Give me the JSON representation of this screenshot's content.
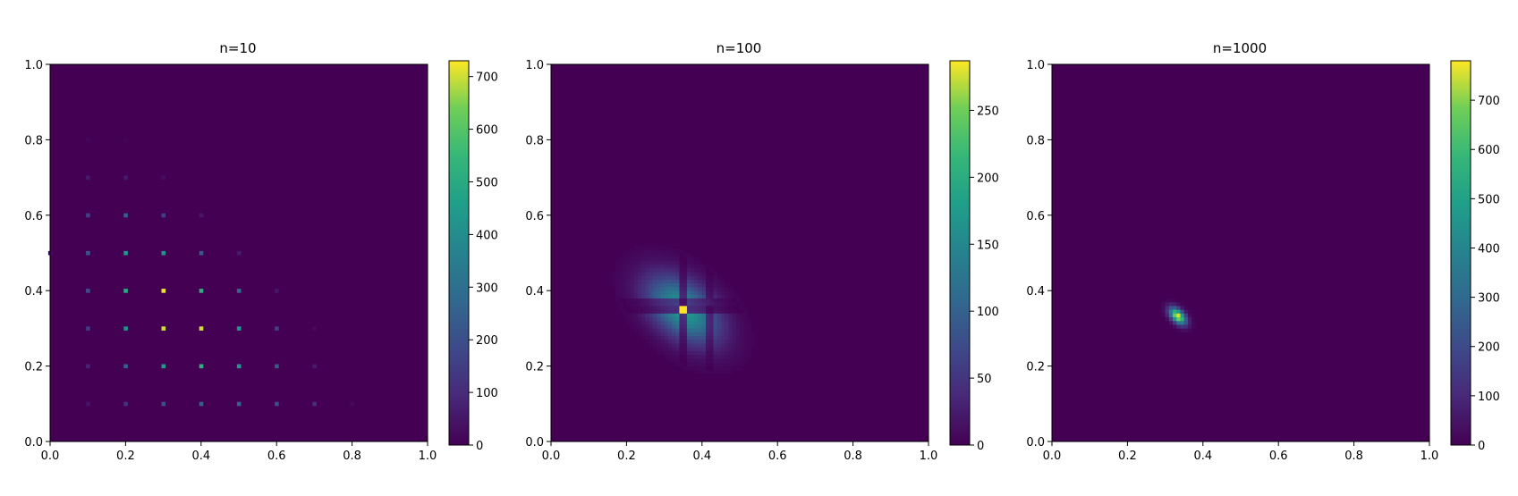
{
  "chart_data": [
    {
      "type": "heatmap",
      "title": "n=10",
      "xlabel": "",
      "ylabel": "",
      "xlim": [
        0,
        1
      ],
      "ylim": [
        0,
        1
      ],
      "xticks": [
        "0.0",
        "0.2",
        "0.4",
        "0.6",
        "0.8",
        "1.0"
      ],
      "yticks": [
        "0.0",
        "0.2",
        "0.4",
        "0.6",
        "0.8",
        "1.0"
      ],
      "colormap": "viridis",
      "colorbar": {
        "min": 0,
        "max": 730,
        "ticks": [
          0,
          100,
          200,
          300,
          400,
          500,
          600,
          700
        ]
      },
      "grid": false,
      "points": [
        {
          "x": 0.1,
          "y": 0.8,
          "v": 15
        },
        {
          "x": 0.2,
          "y": 0.8,
          "v": 10
        },
        {
          "x": 0.1,
          "y": 0.7,
          "v": 60
        },
        {
          "x": 0.2,
          "y": 0.7,
          "v": 60
        },
        {
          "x": 0.3,
          "y": 0.7,
          "v": 30
        },
        {
          "x": 0.1,
          "y": 0.6,
          "v": 160
        },
        {
          "x": 0.2,
          "y": 0.6,
          "v": 250
        },
        {
          "x": 0.3,
          "y": 0.6,
          "v": 160
        },
        {
          "x": 0.4,
          "y": 0.6,
          "v": 50
        },
        {
          "x": 0.0,
          "y": 0.5,
          "v": 30
        },
        {
          "x": 0.1,
          "y": 0.5,
          "v": 220
        },
        {
          "x": 0.2,
          "y": 0.5,
          "v": 430
        },
        {
          "x": 0.3,
          "y": 0.5,
          "v": 420
        },
        {
          "x": 0.4,
          "y": 0.5,
          "v": 230
        },
        {
          "x": 0.5,
          "y": 0.5,
          "v": 60
        },
        {
          "x": 0.1,
          "y": 0.4,
          "v": 200
        },
        {
          "x": 0.2,
          "y": 0.4,
          "v": 500
        },
        {
          "x": 0.3,
          "y": 0.4,
          "v": 720
        },
        {
          "x": 0.4,
          "y": 0.4,
          "v": 520
        },
        {
          "x": 0.5,
          "y": 0.4,
          "v": 280
        },
        {
          "x": 0.6,
          "y": 0.4,
          "v": 50
        },
        {
          "x": 0.1,
          "y": 0.3,
          "v": 140
        },
        {
          "x": 0.2,
          "y": 0.3,
          "v": 420
        },
        {
          "x": 0.3,
          "y": 0.3,
          "v": 700
        },
        {
          "x": 0.4,
          "y": 0.3,
          "v": 700
        },
        {
          "x": 0.5,
          "y": 0.3,
          "v": 440
        },
        {
          "x": 0.6,
          "y": 0.3,
          "v": 160
        },
        {
          "x": 0.7,
          "y": 0.3,
          "v": 20
        },
        {
          "x": 0.1,
          "y": 0.2,
          "v": 80
        },
        {
          "x": 0.2,
          "y": 0.2,
          "v": 260
        },
        {
          "x": 0.3,
          "y": 0.2,
          "v": 440
        },
        {
          "x": 0.4,
          "y": 0.2,
          "v": 520
        },
        {
          "x": 0.5,
          "y": 0.2,
          "v": 440
        },
        {
          "x": 0.6,
          "y": 0.2,
          "v": 230
        },
        {
          "x": 0.7,
          "y": 0.2,
          "v": 60
        },
        {
          "x": 0.1,
          "y": 0.1,
          "v": 40
        },
        {
          "x": 0.2,
          "y": 0.1,
          "v": 120
        },
        {
          "x": 0.3,
          "y": 0.1,
          "v": 200
        },
        {
          "x": 0.4,
          "y": 0.1,
          "v": 250
        },
        {
          "x": 0.5,
          "y": 0.1,
          "v": 260
        },
        {
          "x": 0.6,
          "y": 0.1,
          "v": 200
        },
        {
          "x": 0.7,
          "y": 0.1,
          "v": 110
        },
        {
          "x": 0.8,
          "y": 0.1,
          "v": 20
        }
      ]
    },
    {
      "type": "heatmap",
      "title": "n=100",
      "xlabel": "",
      "ylabel": "",
      "xlim": [
        0,
        1
      ],
      "ylim": [
        0,
        1
      ],
      "xticks": [
        "0.0",
        "0.2",
        "0.4",
        "0.6",
        "0.8",
        "1.0"
      ],
      "yticks": [
        "0.0",
        "0.2",
        "0.4",
        "0.6",
        "0.8",
        "1.0"
      ],
      "colormap": "viridis",
      "colorbar": {
        "min": 0,
        "max": 287,
        "ticks": [
          0,
          50,
          100,
          150,
          200,
          250
        ]
      },
      "grid": false,
      "peak": {
        "x": 0.35,
        "y": 0.35,
        "value": 287
      },
      "spread": {
        "sx": 0.065,
        "sy": 0.06,
        "corr": -0.45
      }
    },
    {
      "type": "heatmap",
      "title": "n=1000",
      "xlabel": "",
      "ylabel": "",
      "xlim": [
        0,
        1
      ],
      "ylim": [
        0,
        1
      ],
      "xticks": [
        "0.0",
        "0.2",
        "0.4",
        "0.6",
        "0.8",
        "1.0"
      ],
      "yticks": [
        "0.0",
        "0.2",
        "0.4",
        "0.6",
        "0.8",
        "1.0"
      ],
      "colormap": "viridis",
      "colorbar": {
        "min": 0,
        "max": 780,
        "ticks": [
          0,
          100,
          200,
          300,
          400,
          500,
          600,
          700
        ]
      },
      "grid": false,
      "peak": {
        "x": 0.333,
        "y": 0.333,
        "value": 780
      },
      "spread": {
        "sx": 0.015,
        "sy": 0.015,
        "corr": -0.5
      }
    }
  ]
}
